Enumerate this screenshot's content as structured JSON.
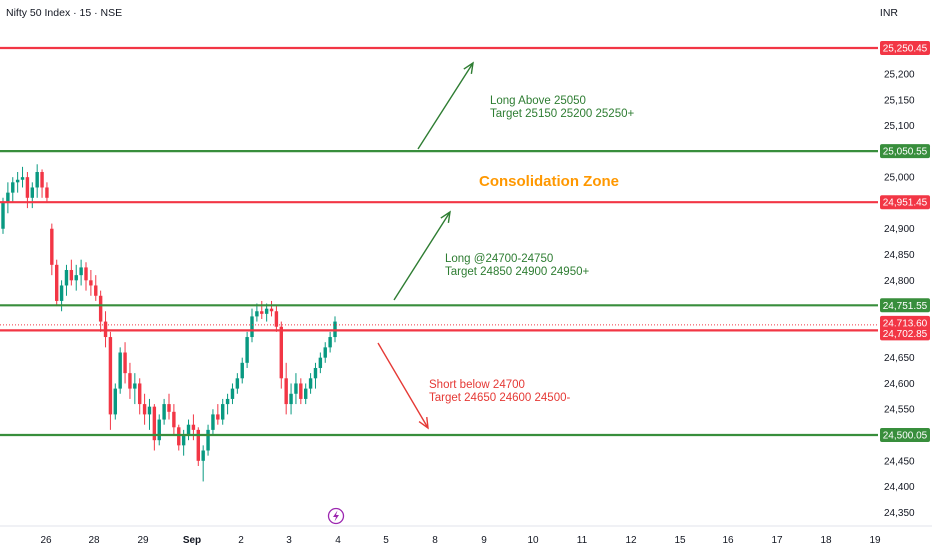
{
  "header": {
    "title": "Nifty 50 Index · 15 · NSE",
    "currency": "INR"
  },
  "chart_data": {
    "type": "candlestick",
    "ylim": [
      24320,
      25290
    ],
    "y_ticks": [
      24350,
      24400,
      24450,
      24500,
      24550,
      24600,
      24650,
      24700,
      24750,
      24800,
      24850,
      24900,
      24950,
      25000,
      25050,
      25100,
      25150,
      25200,
      25250
    ],
    "x_ticks": [
      "26",
      "28",
      "29",
      "Sep",
      "2",
      "3",
      "4",
      "5",
      "8",
      "9",
      "10",
      "11",
      "12",
      "15",
      "16",
      "17",
      "18",
      "19"
    ],
    "x_tick_bold": "Sep",
    "levels": [
      {
        "value": 25250.45,
        "label": "25,250.45",
        "color": "#f23645"
      },
      {
        "value": 25050.55,
        "label": "25,050.55",
        "color": "#388e3c"
      },
      {
        "value": 24951.45,
        "label": "24,951.45",
        "color": "#f23645"
      },
      {
        "value": 24751.55,
        "label": "24,751.55",
        "color": "#388e3c"
      },
      {
        "value": 24713.6,
        "label": "24,713.60",
        "color": "#f23645"
      },
      {
        "value": 24702.85,
        "label": "24,702.85",
        "color": "#f23645"
      },
      {
        "value": 24500.05,
        "label": "24,500.05",
        "color": "#388e3c"
      }
    ],
    "annotations": [
      {
        "lines": [
          "Long Above 25050",
          "Target 25150 25200 25250+"
        ],
        "color": "#2e7d32"
      },
      {
        "lines": [
          "Long @24700-24750",
          "Target 24850 24900 24950+"
        ],
        "color": "#2e7d32"
      },
      {
        "lines": [
          "Short below 24700",
          "Target 24650 24600 24500-"
        ],
        "color": "#e53935"
      }
    ],
    "zone_label": {
      "text": "Consolidation Zone",
      "color": "#ff9800"
    },
    "candles": [
      [
        24900,
        24960,
        24890,
        24950
      ],
      [
        24950,
        24990,
        24930,
        24970
      ],
      [
        24970,
        25000,
        24950,
        24990
      ],
      [
        24990,
        25010,
        24970,
        24995
      ],
      [
        24995,
        25020,
        24980,
        25000
      ],
      [
        25000,
        25010,
        24940,
        24960
      ],
      [
        24960,
        24990,
        24940,
        24980
      ],
      [
        24980,
        25025,
        24960,
        25010
      ],
      [
        25010,
        25015,
        24960,
        24980
      ],
      [
        24980,
        24990,
        24950,
        24960
      ],
      [
        24900,
        24910,
        24810,
        24830
      ],
      [
        24830,
        24840,
        24750,
        24760
      ],
      [
        24760,
        24800,
        24740,
        24790
      ],
      [
        24790,
        24830,
        24770,
        24820
      ],
      [
        24820,
        24840,
        24790,
        24800
      ],
      [
        24800,
        24830,
        24780,
        24810
      ],
      [
        24810,
        24840,
        24790,
        24825
      ],
      [
        24825,
        24835,
        24780,
        24800
      ],
      [
        24800,
        24820,
        24770,
        24790
      ],
      [
        24790,
        24810,
        24760,
        24770
      ],
      [
        24770,
        24780,
        24700,
        24720
      ],
      [
        24720,
        24740,
        24670,
        24690
      ],
      [
        24690,
        24700,
        24510,
        24540
      ],
      [
        24540,
        24600,
        24530,
        24590
      ],
      [
        24590,
        24670,
        24580,
        24660
      ],
      [
        24660,
        24680,
        24600,
        24620
      ],
      [
        24620,
        24640,
        24570,
        24590
      ],
      [
        24590,
        24620,
        24560,
        24600
      ],
      [
        24600,
        24610,
        24540,
        24560
      ],
      [
        24560,
        24580,
        24520,
        24540
      ],
      [
        24540,
        24570,
        24510,
        24555
      ],
      [
        24555,
        24560,
        24470,
        24490
      ],
      [
        24490,
        24540,
        24480,
        24530
      ],
      [
        24530,
        24570,
        24520,
        24560
      ],
      [
        24560,
        24580,
        24530,
        24545
      ],
      [
        24545,
        24560,
        24500,
        24515
      ],
      [
        24515,
        24520,
        24470,
        24480
      ],
      [
        24480,
        24510,
        24460,
        24500
      ],
      [
        24500,
        24530,
        24490,
        24520
      ],
      [
        24520,
        24540,
        24490,
        24510
      ],
      [
        24510,
        24515,
        24440,
        24450
      ],
      [
        24450,
        24480,
        24410,
        24470
      ],
      [
        24470,
        24520,
        24460,
        24510
      ],
      [
        24510,
        24550,
        24500,
        24540
      ],
      [
        24540,
        24560,
        24520,
        24530
      ],
      [
        24530,
        24570,
        24520,
        24560
      ],
      [
        24560,
        24580,
        24540,
        24570
      ],
      [
        24570,
        24600,
        24560,
        24590
      ],
      [
        24590,
        24620,
        24580,
        24610
      ],
      [
        24610,
        24650,
        24600,
        24640
      ],
      [
        24640,
        24700,
        24630,
        24690
      ],
      [
        24690,
        24745,
        24680,
        24730
      ],
      [
        24730,
        24755,
        24720,
        24740
      ],
      [
        24740,
        24760,
        24725,
        24735
      ],
      [
        24735,
        24755,
        24720,
        24745
      ],
      [
        24745,
        24760,
        24730,
        24740
      ],
      [
        24740,
        24750,
        24700,
        24710
      ],
      [
        24710,
        24720,
        24590,
        24610
      ],
      [
        24610,
        24640,
        24540,
        24560
      ],
      [
        24560,
        24600,
        24540,
        24580
      ],
      [
        24580,
        24620,
        24560,
        24600
      ],
      [
        24600,
        24610,
        24560,
        24570
      ],
      [
        24570,
        24600,
        24560,
        24590
      ],
      [
        24590,
        24620,
        24580,
        24610
      ],
      [
        24610,
        24640,
        24590,
        24630
      ],
      [
        24630,
        24660,
        24620,
        24650
      ],
      [
        24650,
        24680,
        24640,
        24670
      ],
      [
        24670,
        24700,
        24660,
        24690
      ],
      [
        24690,
        24730,
        24680,
        24720
      ]
    ]
  }
}
